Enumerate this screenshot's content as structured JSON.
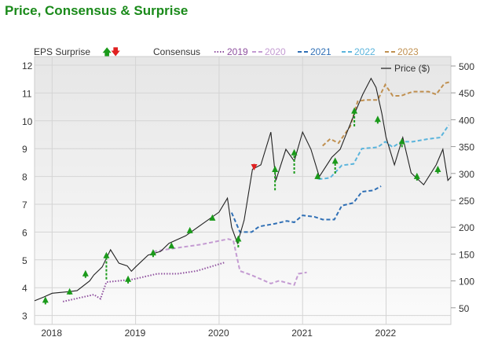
{
  "title": "Price, Consensus & Surprise",
  "chart_data": {
    "type": "line",
    "legend": {
      "surprise_label": "EPS Surprise",
      "consensus_label": "Consensus",
      "price_label": "Price ($)"
    },
    "x_ticks": [
      "2018",
      "2019",
      "2020",
      "2021",
      "2022"
    ],
    "xlim": [
      2017.79,
      2022.78
    ],
    "y_left": {
      "ticks": [
        3,
        4,
        5,
        6,
        7,
        8,
        9,
        10,
        11,
        12
      ],
      "ylim": [
        2.7,
        12.3
      ]
    },
    "y_right": {
      "ticks": [
        50,
        100,
        150,
        200,
        250,
        300,
        350,
        400,
        450,
        500
      ],
      "ylim": [
        20,
        515
      ]
    },
    "grid": true,
    "colors": {
      "2019": "#8e4f9e",
      "2020": "#c49bd2",
      "2021": "#2f6fb5",
      "2022": "#5ab4dc",
      "2023": "#c09050",
      "price": "#222222",
      "beat": "#1a9a1a",
      "miss": "#e02020"
    },
    "price": {
      "name": "Price ($)",
      "x": [
        2017.79,
        2017.9,
        2018.0,
        2018.2,
        2018.3,
        2018.45,
        2018.5,
        2018.6,
        2018.7,
        2018.8,
        2018.9,
        2018.95,
        2019.0,
        2019.15,
        2019.3,
        2019.4,
        2019.6,
        2019.8,
        2020.0,
        2020.1,
        2020.15,
        2020.22,
        2020.3,
        2020.4,
        2020.5,
        2020.62,
        2020.68,
        2020.8,
        2020.9,
        2021.0,
        2021.1,
        2021.2,
        2021.35,
        2021.45,
        2021.6,
        2021.72,
        2021.82,
        2021.88,
        2021.95,
        2022.0,
        2022.1,
        2022.2,
        2022.3,
        2022.45,
        2022.6,
        2022.68,
        2022.74,
        2022.78
      ],
      "y": [
        63,
        70,
        77,
        80,
        82,
        100,
        111,
        126,
        158,
        133,
        128,
        118,
        126,
        148,
        155,
        170,
        184,
        206,
        228,
        254,
        200,
        170,
        213,
        308,
        316,
        377,
        287,
        345,
        323,
        377,
        345,
        294,
        330,
        345,
        403,
        447,
        477,
        460,
        411,
        367,
        316,
        367,
        301,
        279,
        316,
        345,
        287,
        294
      ]
    },
    "consensus": [
      {
        "name": "2019",
        "style": "dotted",
        "x": [
          2018.13,
          2018.5,
          2018.58,
          2018.65,
          2018.97,
          2019.26,
          2019.5,
          2019.73,
          2020.06
        ],
        "y": [
          3.5,
          3.75,
          3.6,
          4.2,
          4.3,
          4.5,
          4.5,
          4.6,
          4.9
        ]
      },
      {
        "name": "2020",
        "style": "dashed",
        "x": [
          2019.21,
          2019.54,
          2019.78,
          2020.11,
          2020.17,
          2020.25,
          2020.39,
          2020.62,
          2020.72,
          2020.9,
          2020.95,
          2021.05
        ],
        "y": [
          5.3,
          5.45,
          5.55,
          5.75,
          5.7,
          4.6,
          4.45,
          4.15,
          4.25,
          4.1,
          4.5,
          4.55
        ]
      },
      {
        "name": "2021",
        "style": "dashed",
        "x": [
          2020.15,
          2020.25,
          2020.39,
          2020.48,
          2020.67,
          2020.81,
          2020.9,
          2021.0,
          2021.14,
          2021.24,
          2021.38,
          2021.47,
          2021.61,
          2021.71,
          2021.85,
          2021.94
        ],
        "y": [
          6.7,
          6.0,
          6.0,
          6.2,
          6.3,
          6.4,
          6.35,
          6.6,
          6.55,
          6.45,
          6.45,
          6.95,
          7.05,
          7.45,
          7.5,
          7.65
        ]
      },
      {
        "name": "2022",
        "style": "dashed",
        "x": [
          2021.19,
          2021.33,
          2021.47,
          2021.61,
          2021.71,
          2021.9,
          2021.99,
          2022.08,
          2022.18,
          2022.32,
          2022.51,
          2022.65,
          2022.75
        ],
        "y": [
          7.9,
          7.95,
          8.4,
          8.45,
          9.0,
          9.05,
          9.25,
          9.05,
          9.25,
          9.25,
          9.35,
          9.4,
          9.85
        ]
      },
      {
        "name": "2023",
        "style": "dashed",
        "x": [
          2021.24,
          2021.33,
          2021.43,
          2021.57,
          2021.66,
          2021.75,
          2021.9,
          2021.99,
          2022.08,
          2022.18,
          2022.32,
          2022.51,
          2022.6,
          2022.7,
          2022.77
        ],
        "y": [
          9.1,
          9.35,
          9.2,
          9.8,
          10.7,
          10.75,
          10.75,
          11.3,
          10.9,
          10.9,
          11.05,
          11.05,
          10.95,
          11.35,
          11.4
        ]
      }
    ],
    "surprises": [
      {
        "x": 2017.92,
        "from": 3.4,
        "to": 3.6,
        "type": "beat"
      },
      {
        "x": 2018.21,
        "from": 3.75,
        "to": 3.9,
        "type": "beat"
      },
      {
        "x": 2018.4,
        "from": 4.35,
        "to": 4.55,
        "type": "beat"
      },
      {
        "x": 2018.65,
        "from": 4.3,
        "to": 5.2,
        "type": "beat"
      },
      {
        "x": 2018.91,
        "from": 4.15,
        "to": 4.35,
        "type": "beat"
      },
      {
        "x": 2019.21,
        "from": 5.1,
        "to": 5.3,
        "type": "beat"
      },
      {
        "x": 2019.43,
        "from": 5.45,
        "to": 5.55,
        "type": "beat"
      },
      {
        "x": 2019.65,
        "from": 5.95,
        "to": 6.1,
        "type": "beat"
      },
      {
        "x": 2019.92,
        "from": 6.45,
        "to": 6.55,
        "type": "beat"
      },
      {
        "x": 2020.23,
        "from": 5.45,
        "to": 5.8,
        "type": "beat"
      },
      {
        "x": 2020.42,
        "from": 8.45,
        "to": 8.3,
        "type": "miss"
      },
      {
        "x": 2020.67,
        "from": 7.5,
        "to": 8.3,
        "type": "beat"
      },
      {
        "x": 2020.9,
        "from": 8.1,
        "to": 8.9,
        "type": "beat"
      },
      {
        "x": 2021.18,
        "from": 7.9,
        "to": 8.05,
        "type": "beat"
      },
      {
        "x": 2021.39,
        "from": 8.1,
        "to": 8.6,
        "type": "beat"
      },
      {
        "x": 2021.62,
        "from": 9.8,
        "to": 10.4,
        "type": "beat"
      },
      {
        "x": 2021.9,
        "from": 9.9,
        "to": 10.1,
        "type": "beat"
      },
      {
        "x": 2022.19,
        "from": 9.05,
        "to": 9.3,
        "type": "beat"
      },
      {
        "x": 2022.37,
        "from": 7.85,
        "to": 8.05,
        "type": "beat"
      },
      {
        "x": 2022.62,
        "from": 8.1,
        "to": 8.3,
        "type": "beat"
      }
    ]
  }
}
